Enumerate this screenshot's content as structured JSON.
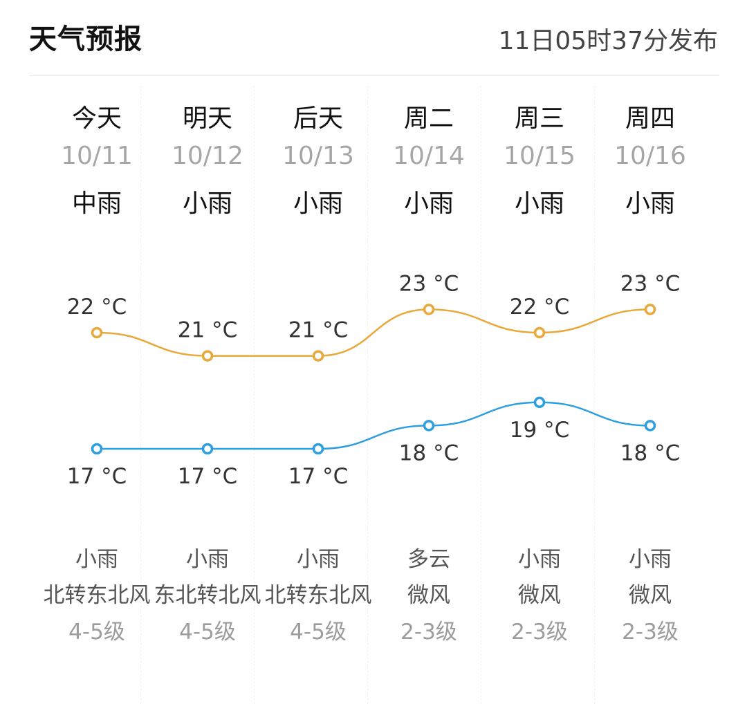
{
  "header": {
    "title": "天气预报",
    "publish_time": "11日05时37分发布"
  },
  "days": [
    {
      "day": "今天",
      "date": "10/11",
      "weather": "中雨",
      "night_weather": "小雨",
      "wind": "北转东北风",
      "level": "4-5级"
    },
    {
      "day": "明天",
      "date": "10/12",
      "weather": "小雨",
      "night_weather": "小雨",
      "wind": "东北转北风",
      "level": "4-5级"
    },
    {
      "day": "后天",
      "date": "10/13",
      "weather": "小雨",
      "night_weather": "小雨",
      "wind": "北转东北风",
      "level": "4-5级"
    },
    {
      "day": "周二",
      "date": "10/14",
      "weather": "小雨",
      "night_weather": "多云",
      "wind": "微风",
      "level": "2-3级"
    },
    {
      "day": "周三",
      "date": "10/15",
      "weather": "小雨",
      "night_weather": "小雨",
      "wind": "微风",
      "level": "2-3级"
    },
    {
      "day": "周四",
      "date": "10/16",
      "weather": "小雨",
      "night_weather": "小雨",
      "wind": "微风",
      "level": "2-3级"
    }
  ],
  "chart_data": {
    "type": "line",
    "categories": [
      "10/11",
      "10/12",
      "10/13",
      "10/14",
      "10/15",
      "10/16"
    ],
    "unit": "°C",
    "series": [
      {
        "key": "high",
        "values": [
          22,
          21,
          21,
          23,
          22,
          23
        ],
        "color": "#e9a93a"
      },
      {
        "key": "low",
        "values": [
          17,
          17,
          17,
          18,
          19,
          18
        ],
        "color": "#2d9ee0"
      }
    ]
  }
}
